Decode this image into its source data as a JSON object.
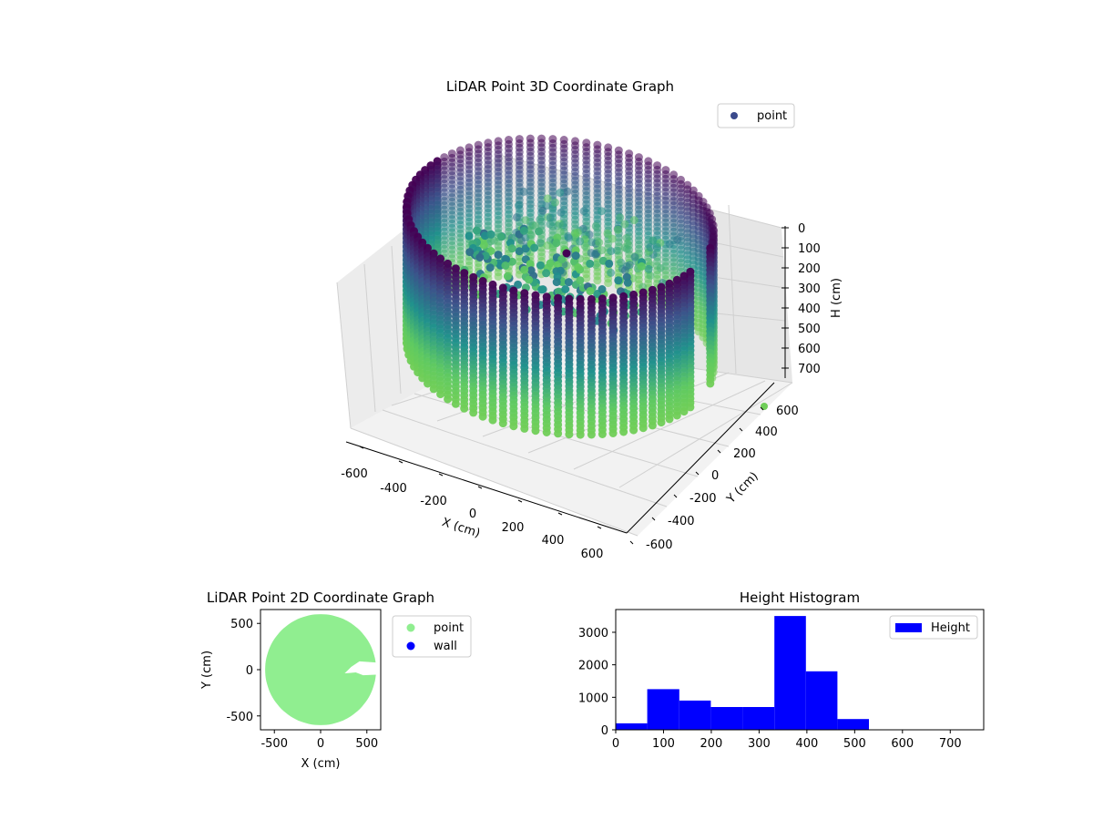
{
  "colors": {
    "viridis_low": "#440154",
    "viridis_mid": "#21918c",
    "viridis_high": "#7ad151",
    "point_2d": "#90ee90",
    "wall_2d": "#0000ff",
    "histogram": "#0000ff",
    "legend_point_3d": "#3b4a8c"
  },
  "chart_data": [
    {
      "type": "scatter",
      "title": "LiDAR Point 3D Coordinate Graph",
      "xlabel": "X (cm)",
      "ylabel": "Y (cm)",
      "zlabel": "H (cm)",
      "xlim": [
        -700,
        700
      ],
      "ylim": [
        -700,
        700
      ],
      "zlim": [
        750,
        0
      ],
      "xticks": [
        "-600",
        "-400",
        "-200",
        "0",
        "200",
        "400",
        "600"
      ],
      "yticks": [
        "-600",
        "-400",
        "-200",
        "0",
        "200",
        "400",
        "600"
      ],
      "zticks": [
        "0",
        "100",
        "200",
        "300",
        "400",
        "500",
        "600",
        "700"
      ],
      "legend": [
        "point"
      ],
      "legend_position": "upper-right",
      "colormap": "viridis",
      "grid": true,
      "description_shape": "cylindrical wall of points of radius ~600 cm from height 0 to ~700 cm, with a notch/gap around x 300-600, y 0-200; interior floor clutter near the center at heights 200-400",
      "wall_radius": 600,
      "wall_height": [
        0,
        700
      ],
      "outlier_points": [
        {
          "x": 0,
          "y": 600,
          "z": 0
        }
      ]
    },
    {
      "type": "scatter",
      "title": "LiDAR Point 2D Coordinate Graph",
      "xlabel": "X (cm)",
      "ylabel": "Y (cm)",
      "xlim": [
        -650,
        650
      ],
      "ylim": [
        -650,
        650
      ],
      "xticks": [
        "-500",
        "0",
        "500"
      ],
      "yticks": [
        "-500",
        "0",
        "500"
      ],
      "series": [
        {
          "name": "point",
          "description": "filled disc of radius ~600 centered at (0,0) with a notch cut at x ≈ 300–650, y ≈ -60–70"
        },
        {
          "name": "wall"
        }
      ],
      "legend_position": "outside-right"
    },
    {
      "type": "bar",
      "title": "Height Histogram",
      "legend": [
        "Height"
      ],
      "legend_position": "upper-right",
      "xlim": [
        0,
        770
      ],
      "ylim": [
        0,
        3700
      ],
      "xticks": [
        "0",
        "100",
        "200",
        "300",
        "400",
        "500",
        "600",
        "700"
      ],
      "yticks": [
        "0",
        "1000",
        "2000",
        "3000"
      ],
      "bin_edges": [
        0,
        66,
        133,
        199,
        266,
        332,
        398,
        464,
        530
      ],
      "values": [
        200,
        1250,
        900,
        700,
        700,
        3500,
        1800,
        330
      ]
    }
  ]
}
